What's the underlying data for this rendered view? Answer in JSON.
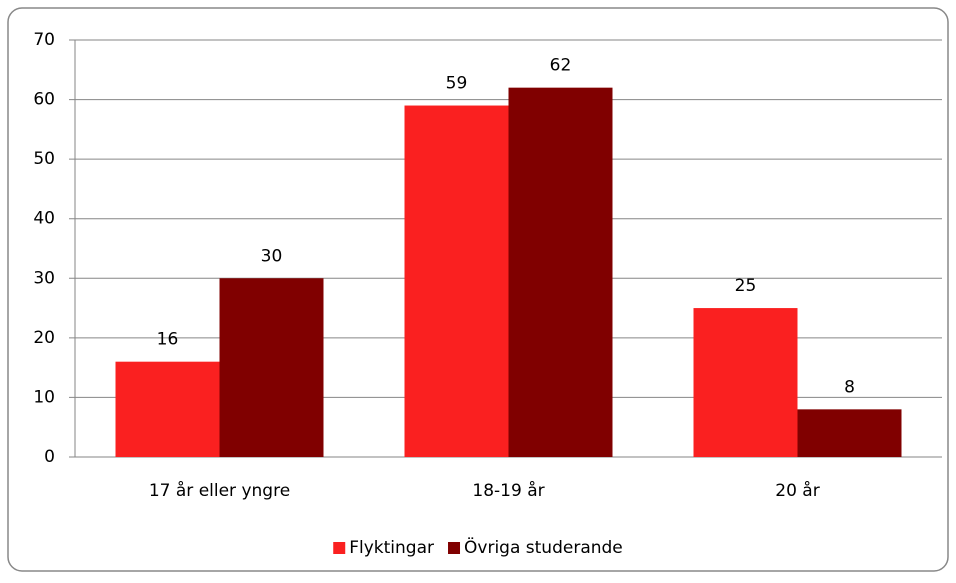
{
  "chart_data": {
    "type": "bar",
    "categories": [
      "17 år eller yngre",
      "18-19 år",
      "20 år"
    ],
    "series": [
      {
        "name": "Flyktingar",
        "color": "#fa2020",
        "values": [
          16,
          59,
          25
        ]
      },
      {
        "name": "Övriga studerande",
        "color": "#800000",
        "values": [
          30,
          62,
          8
        ]
      }
    ],
    "ylim": [
      0,
      70
    ],
    "yticks": [
      0,
      10,
      20,
      30,
      40,
      50,
      60,
      70
    ],
    "grid": true,
    "legend": "bottom"
  }
}
